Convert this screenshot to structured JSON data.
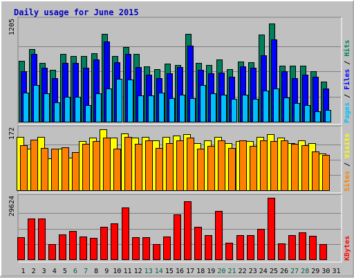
{
  "title": "Daily usage for June 2015",
  "colors": {
    "background": "#c0c0c0",
    "plot_bg": "#c0c0c0",
    "hits": "#00805c",
    "files": "#0000ff",
    "pages": "#00c0ff",
    "visits": "#ffff00",
    "sites": "#ff8000",
    "kbytes": "#ff0000",
    "title": "#0000c0",
    "weekend": "#006040"
  },
  "chart_data": [
    {
      "type": "bar",
      "title": "Daily usage for June 2015",
      "panel": "hits-files-pages",
      "ylabel_parts": [
        "Pages",
        "Files",
        "Hits"
      ],
      "y_max_label": "1205",
      "ylim": [
        0,
        1205
      ],
      "categories": [
        "1",
        "2",
        "3",
        "4",
        "5",
        "6",
        "7",
        "8",
        "9",
        "10",
        "11",
        "12",
        "13",
        "14",
        "15",
        "16",
        "17",
        "18",
        "19",
        "20",
        "21",
        "22",
        "23",
        "24",
        "25",
        "26",
        "27",
        "28",
        "29",
        "30",
        "31"
      ],
      "series": [
        {
          "name": "Hits",
          "values": [
            730,
            870,
            700,
            620,
            810,
            780,
            780,
            820,
            1045,
            780,
            890,
            810,
            660,
            630,
            690,
            680,
            1045,
            700,
            680,
            740,
            630,
            720,
            710,
            1040,
            1175,
            670,
            670,
            670,
            600,
            480,
            0
          ]
        },
        {
          "name": "Files",
          "values": [
            600,
            810,
            640,
            520,
            700,
            700,
            640,
            740,
            960,
            710,
            810,
            650,
            560,
            520,
            580,
            650,
            910,
            620,
            580,
            590,
            540,
            660,
            640,
            790,
            980,
            600,
            520,
            560,
            540,
            400,
            0
          ]
        },
        {
          "name": "Pages",
          "values": [
            350,
            440,
            340,
            230,
            300,
            300,
            200,
            340,
            400,
            510,
            500,
            310,
            310,
            350,
            280,
            320,
            280,
            440,
            340,
            320,
            270,
            320,
            270,
            370,
            400,
            290,
            220,
            200,
            120,
            140,
            0
          ]
        }
      ]
    },
    {
      "type": "bar",
      "panel": "visits-sites",
      "ylabel_parts": [
        "Sites",
        "Visits"
      ],
      "y_max_label": "172",
      "ylim": [
        0,
        172
      ],
      "categories": [
        "1",
        "2",
        "3",
        "4",
        "5",
        "6",
        "7",
        "8",
        "9",
        "10",
        "11",
        "12",
        "13",
        "14",
        "15",
        "16",
        "17",
        "18",
        "19",
        "20",
        "21",
        "22",
        "23",
        "24",
        "25",
        "26",
        "27",
        "28",
        "29",
        "30",
        "31"
      ],
      "series": [
        {
          "name": "Visits",
          "values": [
            150,
            118,
            150,
            90,
            118,
            92,
            138,
            148,
            172,
            148,
            160,
            148,
            150,
            140,
            150,
            155,
            158,
            133,
            140,
            150,
            133,
            138,
            138,
            150,
            158,
            148,
            133,
            140,
            133,
            103,
            0
          ]
        },
        {
          "name": "Sites",
          "values": [
            128,
            142,
            120,
            118,
            122,
            108,
            130,
            138,
            148,
            118,
            150,
            130,
            140,
            120,
            132,
            140,
            148,
            118,
            125,
            140,
            120,
            140,
            125,
            140,
            138,
            140,
            130,
            128,
            110,
            100,
            0
          ]
        }
      ]
    },
    {
      "type": "bar",
      "panel": "kbytes",
      "ylabel_parts": [
        "KBytes"
      ],
      "y_max_label": "29624",
      "ylim": [
        0,
        29624
      ],
      "categories": [
        "1",
        "2",
        "3",
        "4",
        "5",
        "6",
        "7",
        "8",
        "9",
        "10",
        "11",
        "12",
        "13",
        "14",
        "15",
        "16",
        "17",
        "18",
        "19",
        "20",
        "21",
        "22",
        "23",
        "24",
        "25",
        "26",
        "27",
        "28",
        "29",
        "30",
        "31"
      ],
      "series": [
        {
          "name": "KBytes",
          "values": [
            10700,
            19800,
            19500,
            7300,
            11900,
            13500,
            10900,
            10200,
            15500,
            17400,
            25000,
            10600,
            10700,
            7300,
            11100,
            21600,
            28000,
            15800,
            11600,
            23200,
            8000,
            11500,
            11500,
            14800,
            29624,
            7700,
            11500,
            13100,
            11200,
            7400,
            0
          ]
        }
      ]
    }
  ],
  "x_labels": [
    {
      "label": "1",
      "weekend": false
    },
    {
      "label": "2",
      "weekend": false
    },
    {
      "label": "3",
      "weekend": false
    },
    {
      "label": "4",
      "weekend": false
    },
    {
      "label": "5",
      "weekend": false
    },
    {
      "label": "6",
      "weekend": true
    },
    {
      "label": "7",
      "weekend": true
    },
    {
      "label": "8",
      "weekend": false
    },
    {
      "label": "9",
      "weekend": false
    },
    {
      "label": "10",
      "weekend": false
    },
    {
      "label": "11",
      "weekend": false
    },
    {
      "label": "12",
      "weekend": false
    },
    {
      "label": "13",
      "weekend": true
    },
    {
      "label": "14",
      "weekend": true
    },
    {
      "label": "15",
      "weekend": false
    },
    {
      "label": "16",
      "weekend": false
    },
    {
      "label": "17",
      "weekend": false
    },
    {
      "label": "18",
      "weekend": false
    },
    {
      "label": "19",
      "weekend": false
    },
    {
      "label": "20",
      "weekend": true
    },
    {
      "label": "21",
      "weekend": true
    },
    {
      "label": "22",
      "weekend": false
    },
    {
      "label": "23",
      "weekend": false
    },
    {
      "label": "24",
      "weekend": false
    },
    {
      "label": "25",
      "weekend": false
    },
    {
      "label": "26",
      "weekend": false
    },
    {
      "label": "27",
      "weekend": true
    },
    {
      "label": "28",
      "weekend": true
    },
    {
      "label": "29",
      "weekend": false
    },
    {
      "label": "30",
      "weekend": false
    },
    {
      "label": "31",
      "weekend": false
    }
  ]
}
